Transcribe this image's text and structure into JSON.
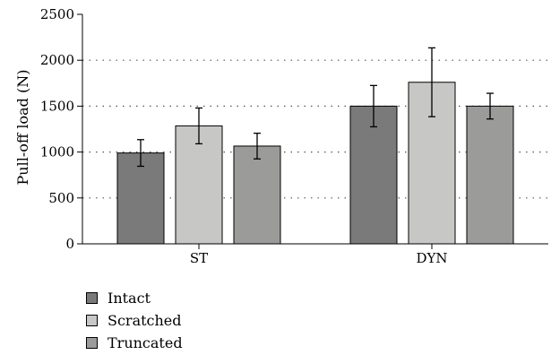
{
  "chart_data": {
    "type": "bar",
    "title": "",
    "xlabel": "",
    "ylabel": "Pull-off load (N)",
    "ylim": [
      0,
      2500
    ],
    "yticks": [
      0,
      500,
      1000,
      1500,
      2000,
      2500
    ],
    "grid": "horizontal dotted",
    "legend_position": "bottom-left",
    "categories": [
      "ST",
      "DYN"
    ],
    "series": [
      {
        "name": "Intact",
        "color": "#7a7a7a",
        "values": [
          990,
          1500
        ],
        "error": [
          145,
          225
        ]
      },
      {
        "name": "Scratched",
        "color": "#c7c8c6",
        "values": [
          1285,
          1760
        ],
        "error": [
          195,
          375
        ]
      },
      {
        "name": "Truncated",
        "color": "#9b9c9a",
        "values": [
          1065,
          1500
        ],
        "error": [
          140,
          140
        ]
      }
    ]
  }
}
